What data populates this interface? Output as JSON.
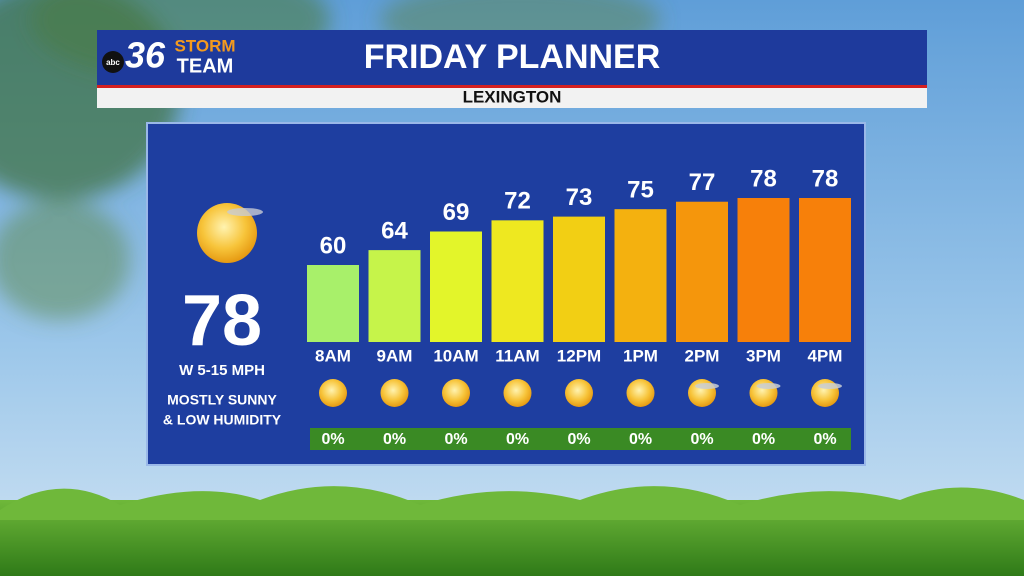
{
  "branding": {
    "network": "abc",
    "number": "36",
    "line1": "STORM",
    "line2": "TEAM"
  },
  "chart_data": {
    "type": "bar",
    "title": "FRIDAY PLANNER",
    "subtitle": "LEXINGTON",
    "categories": [
      "8AM",
      "9AM",
      "10AM",
      "11AM",
      "12PM",
      "1PM",
      "2PM",
      "3PM",
      "4PM"
    ],
    "values": [
      60,
      64,
      69,
      72,
      73,
      75,
      77,
      78,
      78
    ],
    "colors": [
      "#a8f06a",
      "#c6f44a",
      "#e3f52a",
      "#eee820",
      "#f2cf14",
      "#f4b10f",
      "#f5960c",
      "#f7800a",
      "#f7800a"
    ],
    "precipitation": {
      "values": [
        0,
        0,
        0,
        0,
        0,
        0,
        0,
        0,
        0
      ],
      "value_labels": [
        "0%",
        "0%",
        "0%",
        "0%",
        "0%",
        "0%",
        "0%",
        "0%",
        "0%"
      ],
      "color": "#3a8a24"
    }
  },
  "current": {
    "temperature": 78,
    "wind": "W 5-15 MPH",
    "condition_line1": "MOSTLY SUNNY",
    "condition_line2": "& LOW HUMIDITY"
  }
}
